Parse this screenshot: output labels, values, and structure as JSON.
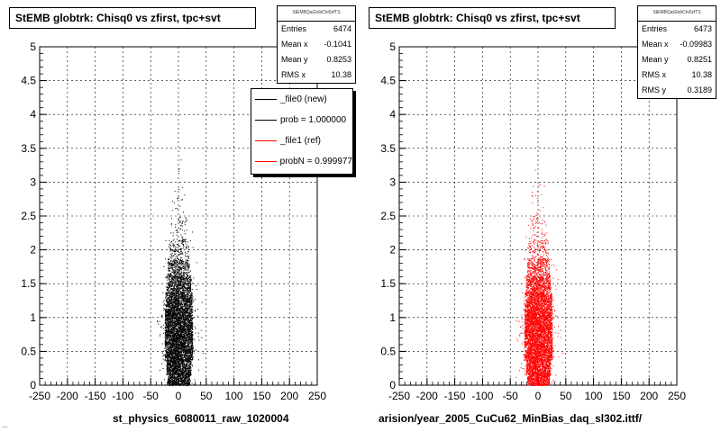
{
  "charts": [
    {
      "title": "StEMB globtrk: Chisq0 vs zfirst, tpc+svt",
      "stats": {
        "header": "StEMBQaGlobChi0zfTS",
        "rows": [
          {
            "label": "Entries",
            "value": "6474"
          },
          {
            "label": "Mean x",
            "value": "-0.1041"
          },
          {
            "label": "Mean y",
            "value": "0.8253"
          },
          {
            "label": "RMS x",
            "value": "10.38"
          }
        ]
      },
      "legend": [
        {
          "label": "_file0 (new)",
          "color": "#000000"
        },
        {
          "label": "prob = 1.000000",
          "color": "#000000"
        },
        {
          "label": "_file1 (ref)",
          "color": "#ff0000"
        },
        {
          "label": "probN = 0.999977",
          "color": "#ff0000"
        }
      ],
      "footer": "st_physics_6080011_raw_1020004"
    },
    {
      "title": "StEMB globtrk: Chisq0 vs zfirst, tpc+svt",
      "stats": {
        "header": "StEMBQaGlobChi0zfTS",
        "rows": [
          {
            "label": "Entries",
            "value": "6473"
          },
          {
            "label": "Mean x",
            "value": "-0.09983"
          },
          {
            "label": "Mean y",
            "value": "0.8251"
          },
          {
            "label": "RMS x",
            "value": "10.38"
          },
          {
            "label": "RMS y",
            "value": "0.3189"
          }
        ]
      },
      "footer": "arision/year_2005_CuCu62_MinBias_daq_sl302.ittf/"
    }
  ],
  "bottom_left_text": "...",
  "chart_data": [
    {
      "type": "scatter",
      "title": "StEMB globtrk: Chisq0 vs zfirst, tpc+svt",
      "xlim": [
        -250,
        250
      ],
      "ylim": [
        0,
        5
      ],
      "xticks": [
        "-250",
        "-200",
        "-150",
        "-100",
        "-50",
        "0",
        "50",
        "100",
        "150",
        "200",
        "250"
      ],
      "yticks": [
        "0",
        "0.5",
        "1",
        "1.5",
        "2",
        "2.5",
        "3",
        "3.5",
        "4",
        "4.5",
        "5"
      ],
      "grid": true,
      "marker_color": "#000000",
      "entries": 6474,
      "mean_x": -0.1041,
      "mean_y": 0.8253,
      "rms_x": 10.38,
      "density_profile": [
        {
          "y": 0.05,
          "x_halfwidth": 20,
          "density": 0.5
        },
        {
          "y": 0.25,
          "x_halfwidth": 22,
          "density": 0.8
        },
        {
          "y": 0.5,
          "x_halfwidth": 25,
          "density": 1.0
        },
        {
          "y": 0.75,
          "x_halfwidth": 25,
          "density": 1.0
        },
        {
          "y": 1.0,
          "x_halfwidth": 25,
          "density": 1.0
        },
        {
          "y": 1.25,
          "x_halfwidth": 24,
          "density": 0.8
        },
        {
          "y": 1.5,
          "x_halfwidth": 22,
          "density": 0.55
        },
        {
          "y": 1.75,
          "x_halfwidth": 20,
          "density": 0.3
        },
        {
          "y": 2.0,
          "x_halfwidth": 18,
          "density": 0.12
        },
        {
          "y": 2.3,
          "x_halfwidth": 15,
          "density": 0.05
        },
        {
          "y": 2.7,
          "x_halfwidth": 12,
          "density": 0.015
        },
        {
          "y": 3.2,
          "x_halfwidth": 6,
          "density": 0.003
        }
      ]
    },
    {
      "type": "scatter",
      "title": "StEMB globtrk: Chisq0 vs zfirst, tpc+svt",
      "xlim": [
        -250,
        250
      ],
      "ylim": [
        0,
        5
      ],
      "xticks": [
        "-250",
        "-200",
        "-150",
        "-100",
        "-50",
        "0",
        "50",
        "100",
        "150",
        "200",
        "250"
      ],
      "yticks": [
        "0",
        "0.5",
        "1",
        "1.5",
        "2",
        "2.5",
        "3",
        "3.5",
        "4",
        "4.5",
        "5"
      ],
      "grid": true,
      "marker_color": "#ff0000",
      "entries": 6473,
      "mean_x": -0.09983,
      "mean_y": 0.8251,
      "rms_x": 10.38,
      "rms_y": 0.3189,
      "density_profile": [
        {
          "y": 0.05,
          "x_halfwidth": 20,
          "density": 0.5
        },
        {
          "y": 0.25,
          "x_halfwidth": 22,
          "density": 0.8
        },
        {
          "y": 0.5,
          "x_halfwidth": 25,
          "density": 1.0
        },
        {
          "y": 0.75,
          "x_halfwidth": 25,
          "density": 1.0
        },
        {
          "y": 1.0,
          "x_halfwidth": 25,
          "density": 1.0
        },
        {
          "y": 1.25,
          "x_halfwidth": 24,
          "density": 0.8
        },
        {
          "y": 1.5,
          "x_halfwidth": 22,
          "density": 0.55
        },
        {
          "y": 1.75,
          "x_halfwidth": 20,
          "density": 0.3
        },
        {
          "y": 2.0,
          "x_halfwidth": 18,
          "density": 0.12
        },
        {
          "y": 2.3,
          "x_halfwidth": 15,
          "density": 0.05
        },
        {
          "y": 2.7,
          "x_halfwidth": 12,
          "density": 0.015
        },
        {
          "y": 3.2,
          "x_halfwidth": 6,
          "density": 0.003
        }
      ]
    }
  ]
}
